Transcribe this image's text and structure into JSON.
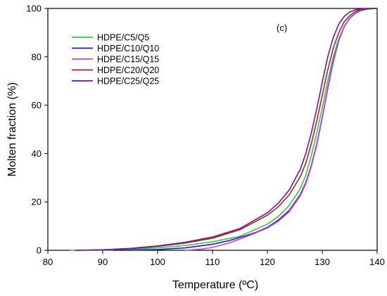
{
  "chart_data": {
    "type": "line",
    "title": "",
    "xlabel": "Temperature (ºC)",
    "ylabel": "Molten  fraction (%)",
    "xlim": [
      80,
      140
    ],
    "ylim": [
      0,
      100
    ],
    "xticks": [
      80,
      90,
      100,
      110,
      120,
      130,
      140
    ],
    "yticks": [
      0,
      20,
      40,
      60,
      80,
      100
    ],
    "grid": false,
    "legend_position": "upper-left",
    "annotation": "(c)",
    "series": [
      {
        "name": "HDPE/C5/Q5",
        "color": "#33cc33",
        "x": [
          84,
          90,
          95,
          100,
          105,
          110,
          115,
          120,
          122,
          124,
          126,
          127,
          128,
          129,
          130,
          131,
          132,
          133,
          134,
          135,
          136,
          137,
          138,
          139,
          140
        ],
        "y": [
          0,
          0.1,
          0.4,
          1.0,
          2.0,
          3.5,
          5.8,
          10.8,
          14.0,
          18.5,
          25.5,
          31,
          39,
          48.5,
          59,
          70,
          80,
          87.5,
          92.5,
          95.8,
          97.8,
          99,
          99.6,
          99.9,
          100
        ]
      },
      {
        "name": "HDPE/C10/Q10",
        "color": "#1a1acc",
        "x": [
          92,
          95,
          100,
          105,
          110,
          113,
          116,
          118,
          120,
          122,
          124,
          126,
          127,
          128,
          129,
          130,
          131,
          132,
          133,
          134,
          135,
          136,
          137,
          138,
          139,
          140
        ],
        "y": [
          0,
          0.05,
          0.3,
          1.0,
          2.5,
          4.0,
          6.0,
          7.5,
          9.5,
          12.5,
          16.5,
          23,
          28,
          35,
          44,
          55,
          67,
          78,
          86.5,
          92.5,
          96,
          98,
          99.2,
          99.7,
          99.9,
          100
        ]
      },
      {
        "name": "HDPE/C15/Q15",
        "color": "#cc44ee",
        "x": [
          105,
          108,
          110,
          113,
          116,
          118,
          120,
          122,
          124,
          126,
          127,
          128,
          129,
          130,
          131,
          132,
          133,
          134,
          135,
          136,
          137,
          138,
          139,
          140
        ],
        "y": [
          0,
          0.5,
          1.2,
          3.0,
          5.5,
          7.3,
          9.2,
          12.0,
          16.0,
          22.5,
          27.5,
          34.5,
          43.5,
          54.5,
          66.5,
          77.5,
          86.5,
          92.5,
          96,
          98,
          99.2,
          99.7,
          99.9,
          100
        ]
      },
      {
        "name": "HDPE/C20/Q20",
        "color": "#aa2222",
        "x": [
          85,
          90,
          95,
          100,
          105,
          110,
          115,
          120,
          122,
          124,
          126,
          127,
          128,
          129,
          130,
          131,
          132,
          133,
          134,
          135,
          136,
          137,
          138,
          139,
          140
        ],
        "y": [
          0,
          0.2,
          0.7,
          1.6,
          3.0,
          5.0,
          8.5,
          14.5,
          18.0,
          23.0,
          30.5,
          36,
          44,
          53.5,
          64,
          74.5,
          83.5,
          90,
          94.5,
          97,
          98.7,
          99.5,
          99.8,
          100,
          100
        ]
      },
      {
        "name": "HDPE/C25/Q25",
        "color": "#6a1a9a",
        "x": [
          85,
          90,
          95,
          100,
          105,
          110,
          115,
          120,
          122,
          124,
          126,
          127,
          128,
          129,
          130,
          131,
          132,
          133,
          134,
          135,
          136,
          137,
          138,
          139,
          140
        ],
        "y": [
          0,
          0.2,
          0.8,
          1.8,
          3.3,
          5.5,
          9.0,
          15.5,
          19.5,
          25.0,
          33.5,
          40,
          48.5,
          58.5,
          69.5,
          80,
          88,
          93.5,
          96.7,
          98.5,
          99.4,
          99.8,
          100,
          100,
          100
        ]
      }
    ]
  }
}
